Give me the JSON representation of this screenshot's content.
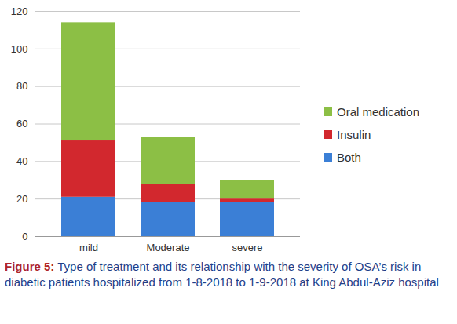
{
  "chart_data": {
    "type": "bar",
    "title": "Figure 5: Type of treatment and its relationship with the severity of OSA’s risk in diabetic patients hospitalized from 1-8-2018 to 1-9-2018 at King Abdul-Aziz hospital",
    "categories": [
      "mild",
      "Moderate",
      "severe"
    ],
    "series": [
      {
        "name": "Both",
        "color": "#3b7fd6",
        "values": [
          21,
          18,
          18
        ]
      },
      {
        "name": "Insulin",
        "color": "#d2282e",
        "values": [
          30,
          10,
          2
        ]
      },
      {
        "name": "Oral medication",
        "color": "#8cbf45",
        "values": [
          63,
          25,
          10
        ]
      }
    ],
    "stacked": true,
    "ylim": [
      0,
      120
    ],
    "yticks": [
      0,
      20,
      40,
      60,
      80,
      100,
      120
    ],
    "grid": true,
    "legend": "right"
  }
}
